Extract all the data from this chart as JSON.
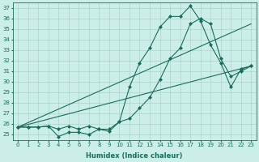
{
  "xlabel": "Humidex (Indice chaleur)",
  "background_color": "#cceee8",
  "grid_color": "#aad4cc",
  "line_color": "#1a6b5e",
  "xlim": [
    -0.5,
    23.5
  ],
  "ylim": [
    24.5,
    37.5
  ],
  "yticks": [
    25,
    26,
    27,
    28,
    29,
    30,
    31,
    32,
    33,
    34,
    35,
    36,
    37
  ],
  "xticks": [
    0,
    1,
    2,
    3,
    4,
    5,
    6,
    7,
    8,
    9,
    10,
    11,
    12,
    13,
    14,
    15,
    16,
    17,
    18,
    19,
    20,
    21,
    22,
    23
  ],
  "series": [
    {
      "x": [
        0,
        1,
        2,
        3,
        4,
        5,
        6,
        7,
        8,
        9,
        10,
        11,
        12,
        13,
        14,
        15,
        16,
        17,
        18,
        19,
        20,
        21,
        22,
        23
      ],
      "y": [
        25.7,
        25.7,
        25.7,
        25.8,
        24.8,
        25.2,
        25.2,
        25.0,
        25.5,
        25.3,
        26.2,
        29.5,
        31.8,
        33.2,
        35.2,
        36.2,
        36.2,
        37.2,
        35.8,
        33.5,
        31.8,
        29.5,
        31.2,
        31.5
      ],
      "marker": true
    },
    {
      "x": [
        0,
        1,
        2,
        3,
        4,
        5,
        6,
        7,
        8,
        9,
        10,
        11,
        12,
        13,
        14,
        15,
        16,
        17,
        18,
        19,
        20,
        21,
        22,
        23
      ],
      "y": [
        25.7,
        25.7,
        25.7,
        25.8,
        25.5,
        25.8,
        25.5,
        25.8,
        25.5,
        25.5,
        26.2,
        26.5,
        27.5,
        28.5,
        30.2,
        32.2,
        33.2,
        35.5,
        36.0,
        35.5,
        32.2,
        30.5,
        31.0,
        31.5
      ],
      "marker": true
    },
    {
      "x": [
        0,
        23
      ],
      "y": [
        25.7,
        31.5
      ],
      "marker": false
    },
    {
      "x": [
        0,
        23
      ],
      "y": [
        25.7,
        35.5
      ],
      "marker": false
    }
  ]
}
